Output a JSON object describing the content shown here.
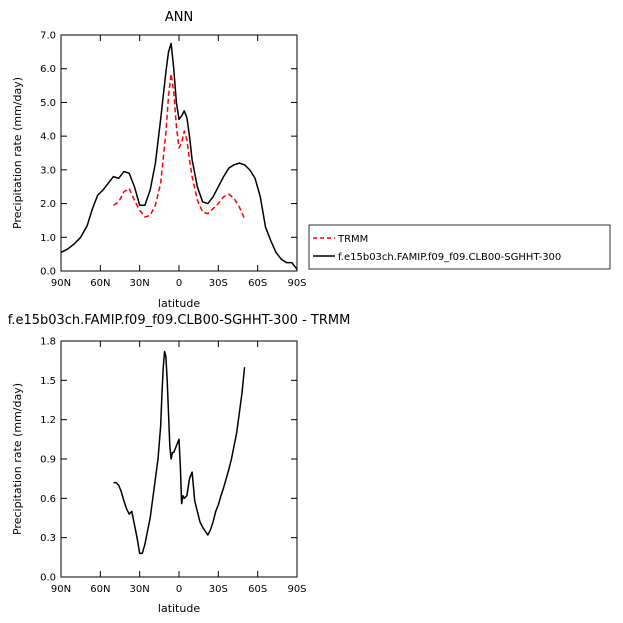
{
  "chart_data": [
    {
      "type": "line",
      "title": "ANN",
      "xlabel": "latitude",
      "ylabel": "Precipitation rate (mm/day)",
      "xlim": [
        90,
        -90
      ],
      "ylim": [
        0,
        7
      ],
      "x_ticks": [
        90,
        60,
        30,
        0,
        -30,
        -60,
        -90
      ],
      "x_tick_labels": [
        "90N",
        "60N",
        "30N",
        "0",
        "30S",
        "60S",
        "90S"
      ],
      "y_ticks": [
        0,
        1,
        2,
        3,
        4,
        5,
        6,
        7
      ],
      "y_tick_labels": [
        "0.0",
        "1.0",
        "2.0",
        "3.0",
        "4.0",
        "5.0",
        "6.0",
        "7.0"
      ],
      "grid": false,
      "legend_position": "right",
      "series": [
        {
          "name": "TRMM",
          "color": "#ff0000",
          "dash": "dashed",
          "x": [
            50,
            46,
            42,
            38,
            34,
            30,
            26,
            22,
            18,
            14,
            10,
            8,
            6,
            4,
            2,
            0,
            -2,
            -4,
            -6,
            -8,
            -10,
            -14,
            -18,
            -22,
            -26,
            -30,
            -34,
            -38,
            -42,
            -46,
            -50
          ],
          "y": [
            1.95,
            2.05,
            2.35,
            2.45,
            2.1,
            1.8,
            1.6,
            1.65,
            1.95,
            2.6,
            4.1,
            5.2,
            5.85,
            5.3,
            4.3,
            3.65,
            3.8,
            4.15,
            3.9,
            3.3,
            2.8,
            2.1,
            1.75,
            1.7,
            1.85,
            2.0,
            2.2,
            2.28,
            2.15,
            1.9,
            1.55
          ]
        },
        {
          "name": "f.e15b03ch.FAMIP.f09_f09.CLB00-SGHHT-300",
          "color": "#000000",
          "dash": "solid",
          "x": [
            90,
            85,
            80,
            75,
            70,
            66,
            62,
            58,
            54,
            50,
            46,
            42,
            38,
            34,
            30,
            26,
            22,
            18,
            14,
            10,
            8,
            6,
            4,
            2,
            0,
            -2,
            -4,
            -6,
            -8,
            -10,
            -14,
            -18,
            -22,
            -26,
            -30,
            -34,
            -38,
            -42,
            -46,
            -50,
            -54,
            -58,
            -62,
            -66,
            -70,
            -74,
            -78,
            -82,
            -86,
            -90
          ],
          "y": [
            0.55,
            0.65,
            0.8,
            1.0,
            1.35,
            1.85,
            2.25,
            2.4,
            2.6,
            2.8,
            2.75,
            2.95,
            2.9,
            2.5,
            1.95,
            1.95,
            2.4,
            3.2,
            4.5,
            5.9,
            6.5,
            6.75,
            6.0,
            5.0,
            4.5,
            4.6,
            4.75,
            4.55,
            4.0,
            3.3,
            2.5,
            2.05,
            2.0,
            2.2,
            2.5,
            2.8,
            3.05,
            3.15,
            3.2,
            3.15,
            3.0,
            2.75,
            2.2,
            1.3,
            0.9,
            0.55,
            0.35,
            0.25,
            0.25,
            0.05
          ]
        }
      ]
    },
    {
      "type": "line",
      "title": "f.e15b03ch.FAMIP.f09_f09.CLB00-SGHHT-300  -  TRMM",
      "xlabel": "latitude",
      "ylabel": "Precipitation rate (mm/day)",
      "xlim": [
        90,
        -90
      ],
      "ylim": [
        0,
        1.8
      ],
      "x_ticks": [
        90,
        60,
        30,
        0,
        -30,
        -60,
        -90
      ],
      "x_tick_labels": [
        "90N",
        "60N",
        "30N",
        "0",
        "30S",
        "60S",
        "90S"
      ],
      "y_ticks": [
        0,
        0.3,
        0.6,
        0.9,
        1.2,
        1.5,
        1.8
      ],
      "y_tick_labels": [
        "0.0",
        "0.3",
        "0.6",
        "0.9",
        "1.2",
        "1.5",
        "1.8"
      ],
      "grid": false,
      "series": [
        {
          "color": "#000000",
          "dash": "solid",
          "x": [
            50,
            48,
            46,
            44,
            42,
            40,
            38,
            36,
            34,
            32,
            30,
            28,
            26,
            24,
            22,
            20,
            18,
            16,
            14,
            13,
            12,
            11,
            10,
            9,
            8,
            7,
            6,
            5,
            4,
            2,
            0,
            -1,
            -2,
            -3,
            -4,
            -6,
            -8,
            -10,
            -12,
            -14,
            -16,
            -18,
            -20,
            -22,
            -24,
            -26,
            -28,
            -30,
            -32,
            -34,
            -36,
            -38,
            -40,
            -42,
            -44,
            -46,
            -48,
            -50
          ],
          "y": [
            0.72,
            0.72,
            0.7,
            0.65,
            0.58,
            0.52,
            0.48,
            0.5,
            0.4,
            0.3,
            0.18,
            0.18,
            0.25,
            0.35,
            0.45,
            0.6,
            0.75,
            0.9,
            1.15,
            1.4,
            1.6,
            1.72,
            1.68,
            1.5,
            1.25,
            1.0,
            0.9,
            0.95,
            0.95,
            1.0,
            1.05,
            0.85,
            0.56,
            0.62,
            0.6,
            0.62,
            0.75,
            0.8,
            0.58,
            0.5,
            0.42,
            0.38,
            0.35,
            0.32,
            0.36,
            0.42,
            0.5,
            0.55,
            0.62,
            0.68,
            0.75,
            0.82,
            0.9,
            1.0,
            1.1,
            1.25,
            1.4,
            1.6
          ]
        }
      ]
    }
  ]
}
